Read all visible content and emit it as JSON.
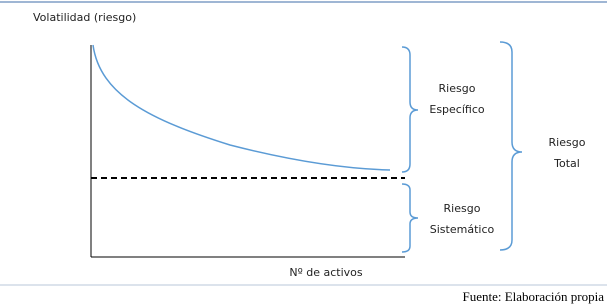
{
  "diagram": {
    "y_axis_label": "Volatilidad (riesgo)",
    "x_axis_label": "Nº de activos",
    "specific_risk": [
      "Riesgo",
      "Específico"
    ],
    "systematic_risk": [
      "Riesgo",
      "Sistemático"
    ],
    "total_risk": [
      "Riesgo",
      "Total"
    ],
    "source": "Fuente: Elaboración propia"
  }
}
